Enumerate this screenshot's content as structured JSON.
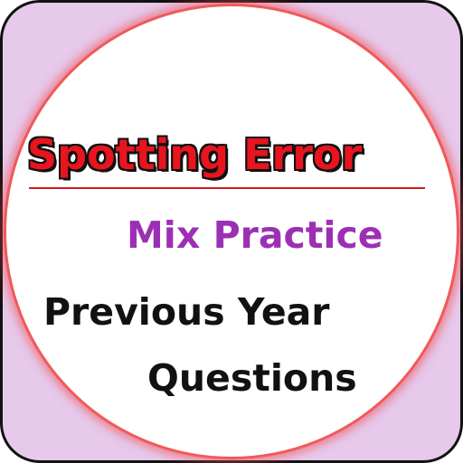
{
  "icon": {
    "title": "Spotting Error",
    "subtitle": "Mix Practice",
    "line_one": "Previous Year",
    "line_two": "Questions"
  },
  "colors": {
    "background": "#e6c9eb",
    "circle": "#ffffff",
    "ring": "#f05a5a",
    "title": "#e8141e",
    "subtitle": "#9b30b4",
    "body_text": "#111111"
  }
}
